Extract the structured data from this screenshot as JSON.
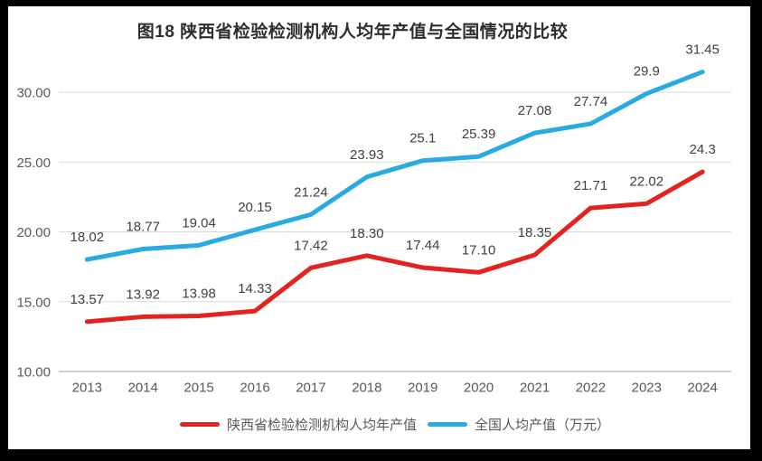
{
  "frame": {
    "background_color": "#000000",
    "canvas_color": "#ffffff"
  },
  "chart_data": {
    "type": "line",
    "title": "图18 陕西省检验检测机构人均年产值与全国情况的比较",
    "categories": [
      "2013",
      "2014",
      "2015",
      "2016",
      "2017",
      "2018",
      "2019",
      "2020",
      "2021",
      "2022",
      "2023",
      "2024"
    ],
    "series": [
      {
        "name": "陕西省检验检测机构人均年产值",
        "color": "#e42320",
        "values": [
          13.57,
          13.92,
          13.98,
          14.33,
          17.42,
          18.3,
          17.44,
          17.1,
          18.35,
          21.71,
          22.02,
          24.3
        ],
        "labels": [
          "13.57",
          "13.92",
          "13.98",
          "14.33",
          "17.42",
          "18.30",
          "17.44",
          "17.10",
          "18.35",
          "21.71",
          "22.02",
          "24.3"
        ]
      },
      {
        "name": "全国人均产值（万元）",
        "color": "#29abe2",
        "values": [
          18.02,
          18.77,
          19.04,
          20.15,
          21.24,
          23.93,
          25.1,
          25.39,
          27.08,
          27.74,
          29.9,
          31.45
        ],
        "labels": [
          "18.02",
          "18.77",
          "19.04",
          "20.15",
          "21.24",
          "23.93",
          "25.1",
          "25.39",
          "27.08",
          "27.74",
          "29.9",
          "31.45"
        ]
      }
    ],
    "y_ticks": [
      "10.00",
      "15.00",
      "20.00",
      "25.00",
      "30.00"
    ],
    "y_tick_values": [
      10,
      15,
      20,
      25,
      30
    ],
    "ylim": [
      10,
      32.7
    ],
    "grid": true,
    "legend_position": "bottom",
    "grid_color": "#d9d9d9",
    "axis_line_color": "#bfbfbf",
    "tick_label_color": "#595959",
    "data_label_color": "#3f3f3f"
  }
}
